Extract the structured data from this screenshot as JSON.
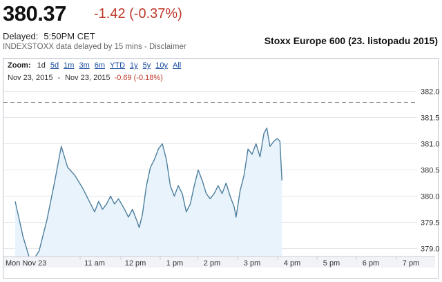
{
  "quote": {
    "price": "380.37",
    "change": "-1.42 (-0.37%)",
    "delayed_label": "Delayed:",
    "delayed_time": "5:50PM CET",
    "source": "INDEXSTOXX data delayed by 15 mins - Disclaimer"
  },
  "figure_title": "Stoxx Europe 600 (23. listopadu 2015)",
  "zoom": {
    "label": "Zoom:",
    "options": [
      "1d",
      "5d",
      "1m",
      "3m",
      "6m",
      "YTD",
      "1y",
      "5y",
      "10y",
      "All"
    ],
    "active": "1d"
  },
  "range": {
    "start": "Nov 23, 2015",
    "separator": "-",
    "end": "Nov 23, 2015",
    "change": "-0.69 (-0.18%)"
  },
  "colors": {
    "line": "#4d7f9e",
    "fill": "#e9f3fb",
    "negative": "#c0392b",
    "previous_close": "#888888"
  },
  "chart_data": {
    "type": "area",
    "xlabel": "",
    "ylabel": "",
    "x_ticks": [
      "Mon Nov 23",
      "11 am",
      "12 pm",
      "1 pm",
      "2 pm",
      "3 pm",
      "4 pm",
      "5 pm",
      "6 pm",
      "7 pm"
    ],
    "y_ticks": [
      "382.0",
      "381.5",
      "381.0",
      "380.5",
      "380.0",
      "379.5",
      "379.0"
    ],
    "ylim": [
      378.6,
      382.15
    ],
    "x_unit": "hours since 10:00",
    "previous_close": 381.79,
    "grid": "horizontal dotted",
    "series": [
      {
        "values": [
          [
            0.0,
            379.9
          ],
          [
            0.1,
            379.22
          ],
          [
            0.2,
            378.72
          ],
          [
            0.3,
            378.95
          ],
          [
            0.4,
            379.55
          ],
          [
            0.5,
            380.3
          ],
          [
            0.58,
            380.95
          ],
          [
            0.66,
            380.55
          ],
          [
            0.75,
            380.4
          ],
          [
            0.85,
            380.15
          ],
          [
            0.95,
            379.85
          ],
          [
            1.0,
            379.7
          ],
          [
            1.1,
            379.9
          ],
          [
            1.2,
            379.75
          ],
          [
            1.3,
            379.85
          ],
          [
            1.4,
            380.0
          ],
          [
            1.5,
            379.85
          ],
          [
            1.6,
            379.95
          ],
          [
            1.75,
            379.75
          ],
          [
            1.85,
            379.6
          ],
          [
            1.95,
            379.75
          ],
          [
            2.05,
            379.55
          ],
          [
            2.12,
            379.4
          ],
          [
            2.2,
            379.65
          ],
          [
            2.3,
            380.2
          ],
          [
            2.4,
            380.55
          ],
          [
            2.5,
            380.7
          ],
          [
            2.6,
            380.9
          ],
          [
            2.7,
            381.0
          ],
          [
            2.8,
            380.7
          ],
          [
            2.9,
            380.2
          ],
          [
            3.0,
            380.0
          ],
          [
            3.1,
            380.2
          ],
          [
            3.2,
            380.05
          ],
          [
            3.3,
            379.7
          ],
          [
            3.4,
            379.85
          ],
          [
            3.5,
            380.2
          ],
          [
            3.6,
            380.5
          ],
          [
            3.7,
            380.3
          ],
          [
            3.8,
            380.05
          ],
          [
            3.9,
            379.95
          ],
          [
            4.0,
            380.05
          ],
          [
            4.1,
            380.2
          ],
          [
            4.2,
            380.05
          ],
          [
            4.3,
            380.25
          ],
          [
            4.4,
            380.0
          ],
          [
            4.5,
            379.8
          ],
          [
            4.55,
            379.6
          ],
          [
            4.65,
            380.1
          ],
          [
            4.75,
            380.4
          ],
          [
            4.85,
            380.9
          ],
          [
            4.95,
            380.8
          ],
          [
            5.05,
            381.0
          ],
          [
            5.15,
            380.75
          ],
          [
            5.25,
            381.2
          ],
          [
            5.32,
            381.3
          ],
          [
            5.4,
            380.95
          ],
          [
            5.5,
            381.05
          ],
          [
            5.58,
            381.1
          ],
          [
            5.65,
            381.05
          ],
          [
            5.7,
            380.3
          ]
        ]
      }
    ]
  }
}
